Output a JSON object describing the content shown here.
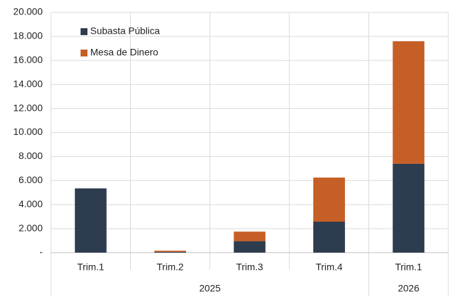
{
  "chart_data": {
    "type": "stacked_bar",
    "categories": [
      "Trim.1",
      "Trim.2",
      "Trim.3",
      "Trim.4",
      "Trim.1"
    ],
    "groups": [
      {
        "label": "2025",
        "count": 4
      },
      {
        "label": "2026",
        "count": 1
      }
    ],
    "series": [
      {
        "name": "Subasta Pública",
        "color": "#2e3c4f",
        "values": [
          5350,
          60,
          950,
          2580,
          7400
        ]
      },
      {
        "name": "Mesa de Dinero",
        "color": "#c65f26",
        "values": [
          0,
          100,
          800,
          3670,
          10200
        ]
      }
    ],
    "ylim": [
      0,
      20000
    ],
    "yticks": [
      {
        "value": 0,
        "label": "-"
      },
      {
        "value": 2000,
        "label": "2.000"
      },
      {
        "value": 4000,
        "label": "4.000"
      },
      {
        "value": 6000,
        "label": "6.000"
      },
      {
        "value": 8000,
        "label": "8.000"
      },
      {
        "value": 10000,
        "label": "10.000"
      },
      {
        "value": 12000,
        "label": "12.000"
      },
      {
        "value": 14000,
        "label": "14.000"
      },
      {
        "value": 16000,
        "label": "16.000"
      },
      {
        "value": 18000,
        "label": "18.000"
      },
      {
        "value": 20000,
        "label": "20.000"
      }
    ],
    "grid": true,
    "legend": "top-left"
  }
}
